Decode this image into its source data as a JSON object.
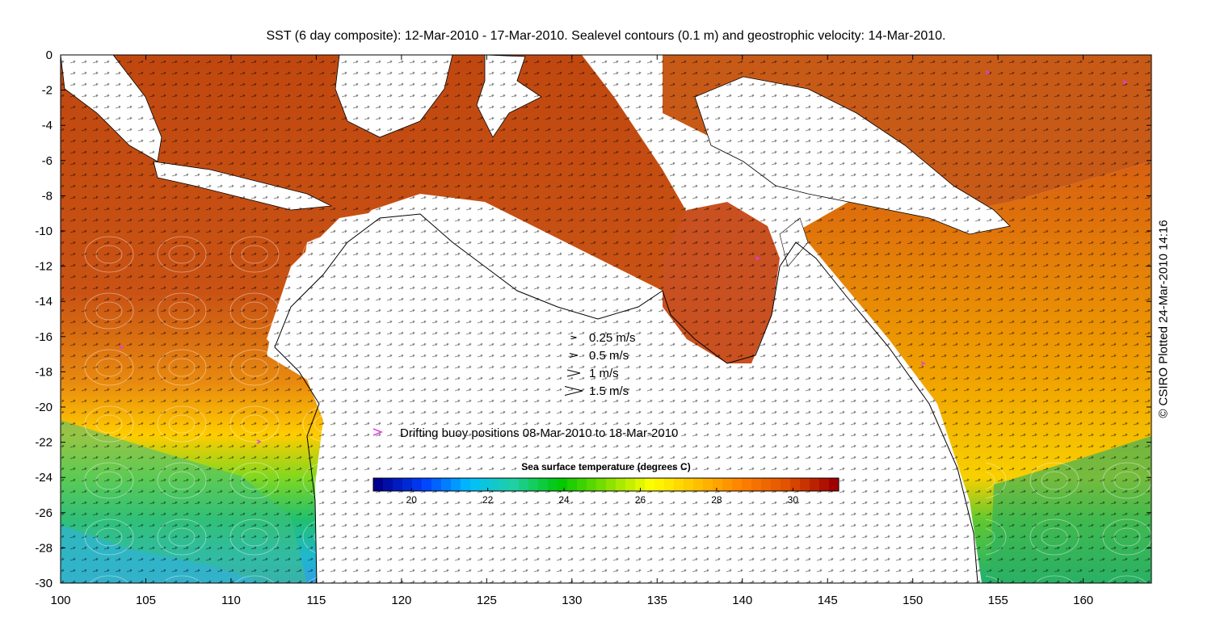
{
  "title": "SST (6 day composite): 12-Mar-2010 - 17-Mar-2010. Sealevel contours (0.1 m) and geostrophic velocity: 14-Mar-2010.",
  "credit": "© CSIRO Plotted 24-Mar-2010 14:16",
  "axes": {
    "lon_range": [
      100,
      164
    ],
    "lat_range": [
      -30,
      0
    ],
    "x_ticks": [
      100,
      105,
      110,
      115,
      120,
      125,
      130,
      135,
      140,
      145,
      150,
      155,
      160
    ],
    "y_ticks": [
      0,
      -2,
      -4,
      -6,
      -8,
      -10,
      -12,
      -14,
      -16,
      -18,
      -20,
      -22,
      -24,
      -26,
      -28,
      -30
    ]
  },
  "velocity_legend": [
    {
      "label": "0.25 m/s",
      "speed": 0.25
    },
    {
      "label": "0.5 m/s",
      "speed": 0.5
    },
    {
      "label": "1 m/s",
      "speed": 1.0
    },
    {
      "label": "1.5 m/s",
      "speed": 1.5
    }
  ],
  "buoy_legend": {
    "label": "Drifting buoy positions 08-Mar-2010 to 18-Mar-2010",
    "color": "#e040e0"
  },
  "colorbar": {
    "title": "Sea surface temperature (degrees C)",
    "range": [
      19,
      31.2
    ],
    "ticks": [
      20,
      22,
      24,
      26,
      28,
      30
    ],
    "colors": [
      "#00008f",
      "#0040ff",
      "#00bfff",
      "#20d0a0",
      "#00c800",
      "#80e000",
      "#ffff00",
      "#ffc000",
      "#ff8000",
      "#e05000",
      "#a00000"
    ]
  },
  "colors": {
    "land": "#ffffff",
    "coastline": "#000000",
    "contour": "#ffffff",
    "warm_sst": "#c84a10"
  }
}
